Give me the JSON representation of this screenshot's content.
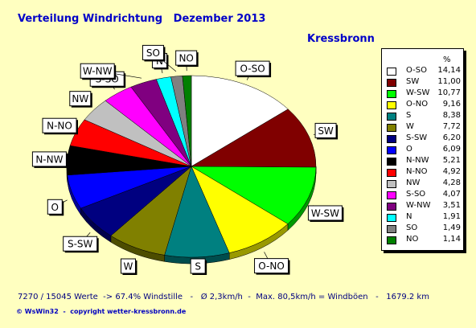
{
  "header": {
    "title": "Verteilung Windrichtung   Dezember 2013",
    "station": "Kressbronn"
  },
  "legend": {
    "unit_header": "%"
  },
  "footer": {
    "stats": "7270 / 15045 Werte  -> 67.4% Windstille   -   Ø 2,3km/h  -  Max. 80,5km/h = Windböen   -   1679.2 km",
    "copyright": "© WsWin32  -  copyright wetter-kressbronn.de"
  },
  "chart_data": {
    "type": "pie",
    "title": "Verteilung Windrichtung   Dezember 2013",
    "subtitle": "Kressbronn",
    "legend_position": "right",
    "slices": [
      {
        "label": "O-SO",
        "value": 14.14,
        "display": "14,14",
        "color": "#ffffff"
      },
      {
        "label": "SW",
        "value": 11.0,
        "display": "11,00",
        "color": "#800000"
      },
      {
        "label": "W-SW",
        "value": 10.77,
        "display": "10,77",
        "color": "#00ff00"
      },
      {
        "label": "O-NO",
        "value": 9.16,
        "display": "9,16",
        "color": "#ffff00"
      },
      {
        "label": "S",
        "value": 8.38,
        "display": "8,38",
        "color": "#008080"
      },
      {
        "label": "W",
        "value": 7.72,
        "display": "7,72",
        "color": "#808000"
      },
      {
        "label": "S-SW",
        "value": 6.2,
        "display": "6,20",
        "color": "#000080"
      },
      {
        "label": "O",
        "value": 6.09,
        "display": "6,09",
        "color": "#0000ff"
      },
      {
        "label": "N-NW",
        "value": 5.21,
        "display": "5,21",
        "color": "#000000"
      },
      {
        "label": "N-NO",
        "value": 4.92,
        "display": "4,92",
        "color": "#ff0000"
      },
      {
        "label": "NW",
        "value": 4.28,
        "display": "4,28",
        "color": "#c0c0c0"
      },
      {
        "label": "S-SO",
        "value": 4.07,
        "display": "4,07",
        "color": "#ff00ff"
      },
      {
        "label": "W-NW",
        "value": 3.51,
        "display": "3,51",
        "color": "#800080"
      },
      {
        "label": "N",
        "value": 1.91,
        "display": "1,91",
        "color": "#00ffff"
      },
      {
        "label": "SO",
        "value": 1.49,
        "display": "1,49",
        "color": "#808080"
      },
      {
        "label": "NO",
        "value": 1.14,
        "display": "1,14",
        "color": "#008000"
      }
    ]
  }
}
